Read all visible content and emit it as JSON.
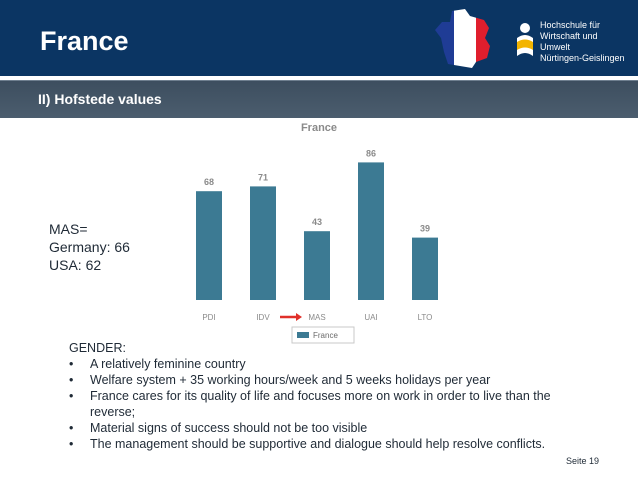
{
  "slide": {
    "title": "France",
    "subtitle": "II) Hofstede values",
    "page_label": "Seite 19"
  },
  "logo": {
    "school_lines": [
      "Hochschule für",
      "Wirtschaft und Umwelt",
      "Nürtingen-Geislingen"
    ],
    "flag_colors": [
      "#1f3c95",
      "#ffffff",
      "#e01e2d"
    ]
  },
  "mas_note": {
    "lines": [
      "MAS=",
      "Germany: 66",
      "USA: 62"
    ]
  },
  "gender": {
    "heading": "GENDER:",
    "items": [
      "A relatively feminine country",
      "Welfare system + 35 working hours/week and 5 weeks holidays per year",
      "France cares for its quality of life and focuses more on work in order to live than the reverse;",
      "Material signs of success should not be too visible",
      "The management should be supportive and dialogue should help resolve conflicts."
    ],
    "bullet": "•"
  },
  "chart_data": {
    "type": "bar",
    "title": "France",
    "categories": [
      "PDI",
      "IDV",
      "MAS",
      "UAI",
      "LTO"
    ],
    "series": [
      {
        "name": "France",
        "values": [
          68,
          71,
          43,
          86,
          39
        ]
      }
    ],
    "ylim": [
      0,
      100
    ],
    "grid": false,
    "legend": "bottom",
    "highlight_category": "MAS",
    "colors": {
      "bar": "#3c7a93",
      "label": "#8a8a8a",
      "arrow": "#e0302a"
    }
  }
}
